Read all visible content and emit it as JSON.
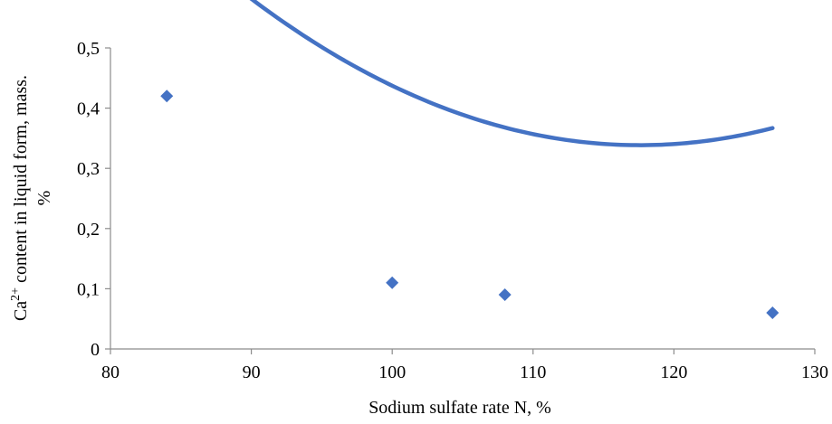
{
  "chart_data": {
    "type": "scatter",
    "title": "",
    "xlabel": "Sodium sulfate rate N, %",
    "ylabel_parts": {
      "prefix": "Ca",
      "superscript": "2+",
      "suffix": " content in liquid form, mass.",
      "line2": "%"
    },
    "xlim": [
      80,
      130
    ],
    "ylim": [
      0,
      0.5
    ],
    "x_ticks": [
      80,
      90,
      100,
      110,
      120,
      130
    ],
    "y_ticks": [
      0,
      0.1,
      0.2,
      0.3,
      0.4,
      0.5
    ],
    "x_tick_labels": [
      "80",
      "90",
      "100",
      "110",
      "120",
      "130"
    ],
    "y_tick_labels": [
      "0",
      "0,1",
      "0,2",
      "0,3",
      "0,4",
      "0,5"
    ],
    "grid": false,
    "legend": "none",
    "series": [
      {
        "marker": "diamond",
        "color": "#4472C4",
        "x": [
          84,
          100,
          108,
          127
        ],
        "y": [
          0.42,
          0.11,
          0.09,
          0.06
        ]
      }
    ],
    "trendline": {
      "type": "polynomial",
      "order": 2,
      "color": "#4472C4",
      "x_range": [
        84,
        127
      ],
      "coefficients": [
        4.75838,
        -0.0751848,
        0.000319733
      ]
    }
  }
}
